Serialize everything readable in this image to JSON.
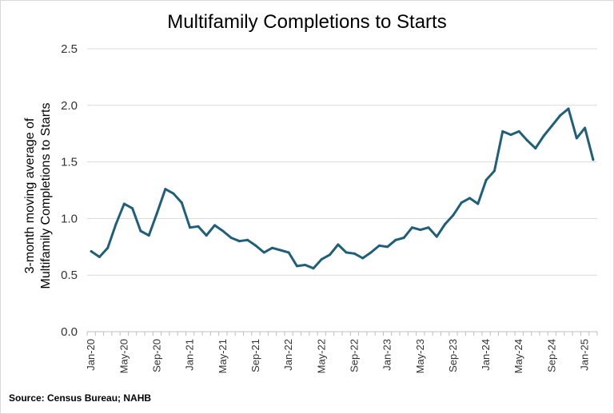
{
  "chart_data": {
    "type": "line",
    "title": "Multifamily Completions to Starts",
    "ylabel_lines": [
      "3-month moving average of",
      "Multifamily Completions to Starts"
    ],
    "source": "Source: Census Bureau; NAHB",
    "ylim": [
      0,
      2.5
    ],
    "yticks": [
      "0.0",
      "0.5",
      "1.0",
      "1.5",
      "2.0",
      "2.5"
    ],
    "xticks": [
      "Jan-20",
      "May-20",
      "Sep-20",
      "Jan-21",
      "May-21",
      "Sep-21",
      "Jan-22",
      "May-22",
      "Sep-22",
      "Jan-23",
      "May-23",
      "Sep-23",
      "Jan-24",
      "May-24",
      "Sep-24",
      "Jan-25"
    ],
    "grid": true,
    "color": "#1f5f7a",
    "series": [
      {
        "x": [
          "Jan-20",
          "Feb-20",
          "Mar-20",
          "Apr-20",
          "May-20",
          "Jun-20",
          "Jul-20",
          "Aug-20",
          "Sep-20",
          "Oct-20",
          "Nov-20",
          "Dec-20",
          "Jan-21",
          "Feb-21",
          "Mar-21",
          "Apr-21",
          "May-21",
          "Jun-21",
          "Jul-21",
          "Aug-21",
          "Sep-21",
          "Oct-21",
          "Nov-21",
          "Dec-21",
          "Jan-22",
          "Feb-22",
          "Mar-22",
          "Apr-22",
          "May-22",
          "Jun-22",
          "Jul-22",
          "Aug-22",
          "Sep-22",
          "Oct-22",
          "Nov-22",
          "Dec-22",
          "Jan-23",
          "Feb-23",
          "Mar-23",
          "Apr-23",
          "May-23",
          "Jun-23",
          "Jul-23",
          "Aug-23",
          "Sep-23",
          "Oct-23",
          "Nov-23",
          "Dec-23",
          "Jan-24",
          "Feb-24",
          "Mar-24",
          "Apr-24",
          "May-24",
          "Jun-24",
          "Jul-24",
          "Aug-24",
          "Sep-24",
          "Oct-24",
          "Nov-24",
          "Dec-24",
          "Jan-25",
          "Feb-25"
        ],
        "values": [
          0.71,
          0.66,
          0.74,
          0.95,
          1.13,
          1.09,
          0.89,
          0.85,
          1.05,
          1.26,
          1.22,
          1.14,
          0.92,
          0.93,
          0.85,
          0.94,
          0.89,
          0.83,
          0.8,
          0.81,
          0.76,
          0.7,
          0.74,
          0.72,
          0.7,
          0.58,
          0.59,
          0.56,
          0.64,
          0.68,
          0.77,
          0.7,
          0.69,
          0.65,
          0.7,
          0.76,
          0.75,
          0.81,
          0.83,
          0.92,
          0.9,
          0.92,
          0.84,
          0.95,
          1.03,
          1.14,
          1.18,
          1.13,
          1.34,
          1.42,
          1.77,
          1.74,
          1.77,
          1.69,
          1.62,
          1.73,
          1.82,
          1.91,
          1.97,
          1.71,
          1.8,
          1.52
        ]
      }
    ]
  }
}
